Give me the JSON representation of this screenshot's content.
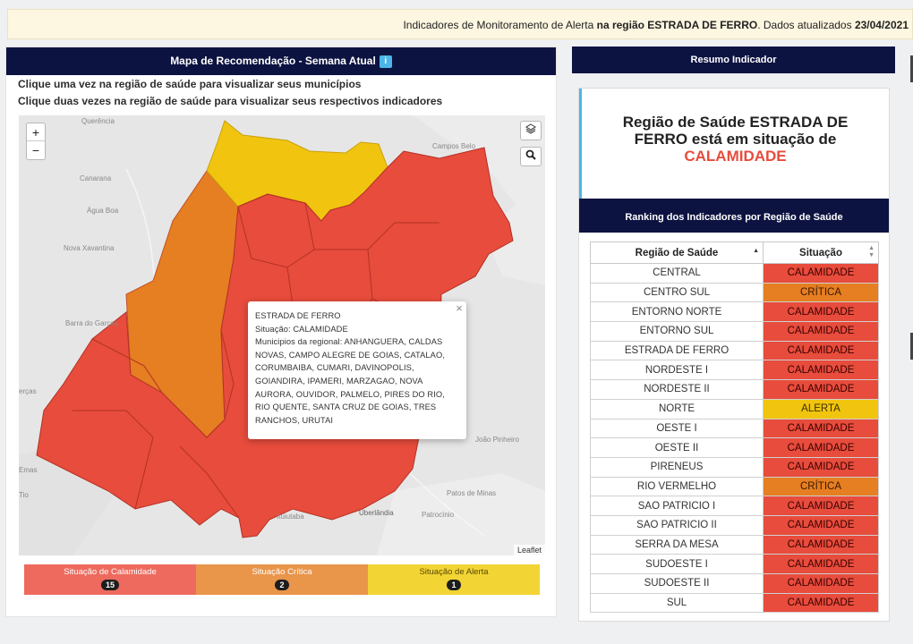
{
  "banner": {
    "prefix": "Indicadores de Monitoramento de Alerta",
    "region_phrase": "na região ESTRADA DE FERRO",
    "middle": ". Dados atualizados",
    "date": "23/04/2021"
  },
  "map_panel": {
    "title": "Mapa de Recomendação - Semana Atual",
    "info_icon": "i",
    "instruction_1": "Clique uma vez na região de saúde para visualizar seus municípios",
    "instruction_2": "Clique duas vezes na região de saúde para visualizar seus respectivos indicadores",
    "zoom_in": "+",
    "zoom_out": "−",
    "layers_icon": "layers-icon",
    "search_icon": "search-icon",
    "attribution": "Leaflet",
    "place_labels": {
      "querencia": "Querência",
      "canarana": "Canarana",
      "agua_boa": "Água Boa",
      "nova_xavantina": "Nova Xavantina",
      "barra_do_garcas": "Barra do Garças",
      "campo_belo": "Campos Belo",
      "joao_pinheiro": "João Pinheiro",
      "patos_de_minas": "Patos de Minas",
      "uberlandia": "Uberlândia",
      "ituiutaba": "Ituiutaba",
      "patrocinio": "Patrocínio",
      "emas": "Emas",
      "ercas": "erças",
      "tio": "Tio"
    },
    "popup": {
      "region": "ESTRADA DE FERRO",
      "situation": "Situação: CALAMIDADE",
      "municipalities": "Municipios da regional: ANHANGUERA, CALDAS NOVAS, CAMPO ALEGRE DE GOIAS, CATALAO, CORUMBAIBA, CUMARI, DAVINOPOLIS, GOIANDIRA, IPAMERI, MARZAGAO, NOVA AURORA, OUVIDOR, PALMELO, PIRES DO RIO, RIO QUENTE, SANTA CRUZ DE GOIAS, TRES RANCHOS, URUTAI",
      "close": "×"
    },
    "legend": [
      {
        "label": "Situação de Calamidade",
        "count": "15",
        "color": "#ee6a5e"
      },
      {
        "label": "Situação Crítica",
        "count": "2",
        "color": "#e9954a"
      },
      {
        "label": "Situação de Alerta",
        "count": "1",
        "color": "#f2d435"
      }
    ],
    "colors": {
      "calamidade": "#e74c3c",
      "critica": "#e67e22",
      "alerta": "#f1c40f"
    }
  },
  "summary_panel": {
    "title": "Resumo Indicador",
    "line_1": "Região de Saúde ESTRADA DE",
    "line_2": "FERRO está em situação de",
    "status": "CALAMIDADE",
    "ranking_title": "Ranking dos Indicadores por Região de Saúde",
    "col_region": "Região de Saúde",
    "col_situation": "Situação",
    "rows": [
      {
        "region": "CENTRAL",
        "situation": "CALAMIDADE",
        "level": "cal"
      },
      {
        "region": "CENTRO SUL",
        "situation": "CRÍTICA",
        "level": "crit"
      },
      {
        "region": "ENTORNO NORTE",
        "situation": "CALAMIDADE",
        "level": "cal"
      },
      {
        "region": "ENTORNO SUL",
        "situation": "CALAMIDADE",
        "level": "cal"
      },
      {
        "region": "ESTRADA DE FERRO",
        "situation": "CALAMIDADE",
        "level": "cal"
      },
      {
        "region": "NORDESTE I",
        "situation": "CALAMIDADE",
        "level": "cal"
      },
      {
        "region": "NORDESTE II",
        "situation": "CALAMIDADE",
        "level": "cal"
      },
      {
        "region": "NORTE",
        "situation": "ALERTA",
        "level": "alert"
      },
      {
        "region": "OESTE I",
        "situation": "CALAMIDADE",
        "level": "cal"
      },
      {
        "region": "OESTE II",
        "situation": "CALAMIDADE",
        "level": "cal"
      },
      {
        "region": "PIRENEUS",
        "situation": "CALAMIDADE",
        "level": "cal"
      },
      {
        "region": "RIO VERMELHO",
        "situation": "CRÍTICA",
        "level": "crit"
      },
      {
        "region": "SAO PATRICIO I",
        "situation": "CALAMIDADE",
        "level": "cal"
      },
      {
        "region": "SAO PATRICIO II",
        "situation": "CALAMIDADE",
        "level": "cal"
      },
      {
        "region": "SERRA DA MESA",
        "situation": "CALAMIDADE",
        "level": "cal"
      },
      {
        "region": "SUDOESTE I",
        "situation": "CALAMIDADE",
        "level": "cal"
      },
      {
        "region": "SUDOESTE II",
        "situation": "CALAMIDADE",
        "level": "cal"
      },
      {
        "region": "SUL",
        "situation": "CALAMIDADE",
        "level": "cal"
      }
    ]
  }
}
